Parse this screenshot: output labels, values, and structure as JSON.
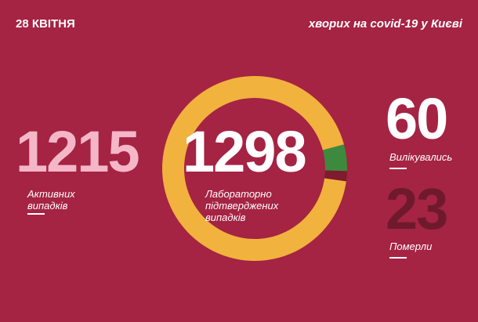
{
  "chart_data": {
    "type": "donut",
    "date": "28 КВІТНЯ",
    "title": "хворих на covid-19 у Києві",
    "total": 1298,
    "total_label": "Лабораторно підтверджених випадків",
    "categories": [
      "Активних випадків",
      "Вилікувались",
      "Померли"
    ],
    "values": [
      1215,
      60,
      23
    ],
    "colors": [
      "#f1b23e",
      "#3d8a3e",
      "#7c1c2e"
    ]
  }
}
